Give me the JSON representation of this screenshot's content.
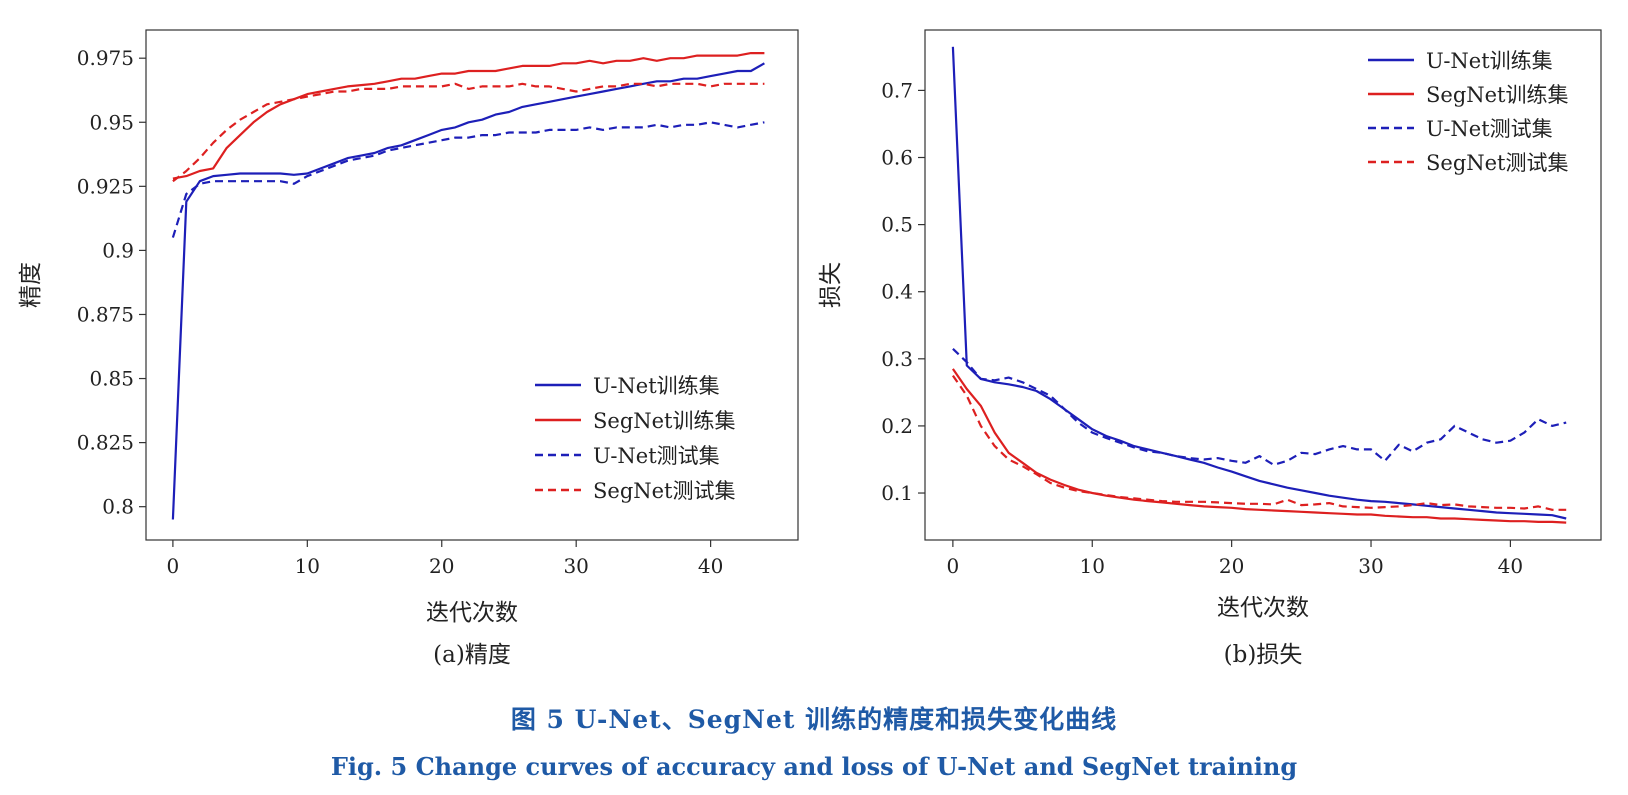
{
  "colors": {
    "unet": "#1d1fb8",
    "segnet": "#dd2020",
    "caption": "#1f5aa6"
  },
  "caption": {
    "cn": "图 5   U-Net、SegNet 训练的精度和损失变化曲线",
    "en": "Fig. 5   Change curves of accuracy and loss of U-Net and SegNet training"
  },
  "chart_data": [
    {
      "type": "line",
      "subcaption": "(a)精度",
      "xlabel": "迭代次数",
      "ylabel": "精度",
      "xlim": [
        -2,
        46.5
      ],
      "ylim": [
        0.787,
        0.986
      ],
      "xticks": [
        0,
        10,
        20,
        30,
        40
      ],
      "yticks": [
        0.8,
        0.825,
        0.85,
        0.875,
        0.9,
        0.925,
        0.95,
        0.975
      ],
      "ytick_labels": [
        "0.8",
        "0.825",
        "0.85",
        "0.875",
        "0.9",
        "0.925",
        "0.95",
        "0.975"
      ],
      "legend_position": "lower-right",
      "grid": false,
      "x": [
        0,
        1,
        2,
        3,
        4,
        5,
        6,
        7,
        8,
        9,
        10,
        11,
        12,
        13,
        14,
        15,
        16,
        17,
        18,
        19,
        20,
        21,
        22,
        23,
        24,
        25,
        26,
        27,
        28,
        29,
        30,
        31,
        32,
        33,
        34,
        35,
        36,
        37,
        38,
        39,
        40,
        41,
        42,
        43,
        44
      ],
      "series": [
        {
          "name": "U-Net训练集",
          "style": "solid",
          "color_key": "unet",
          "values": [
            0.795,
            0.919,
            0.927,
            0.929,
            0.9295,
            0.93,
            0.93,
            0.93,
            0.93,
            0.9295,
            0.93,
            0.932,
            0.934,
            0.936,
            0.937,
            0.938,
            0.94,
            0.941,
            0.943,
            0.945,
            0.947,
            0.948,
            0.95,
            0.951,
            0.953,
            0.954,
            0.956,
            0.957,
            0.958,
            0.959,
            0.96,
            0.961,
            0.962,
            0.963,
            0.964,
            0.965,
            0.966,
            0.966,
            0.967,
            0.967,
            0.968,
            0.969,
            0.97,
            0.97,
            0.973
          ]
        },
        {
          "name": "SegNet训练集",
          "style": "solid",
          "color_key": "segnet",
          "values": [
            0.928,
            0.929,
            0.931,
            0.932,
            0.94,
            0.945,
            0.95,
            0.954,
            0.957,
            0.959,
            0.961,
            0.962,
            0.963,
            0.964,
            0.9645,
            0.965,
            0.966,
            0.967,
            0.967,
            0.968,
            0.969,
            0.969,
            0.97,
            0.97,
            0.97,
            0.971,
            0.972,
            0.972,
            0.972,
            0.973,
            0.973,
            0.974,
            0.973,
            0.974,
            0.974,
            0.975,
            0.974,
            0.975,
            0.975,
            0.976,
            0.976,
            0.976,
            0.976,
            0.977,
            0.977
          ]
        },
        {
          "name": "U-Net测试集",
          "style": "dashed",
          "color_key": "unet",
          "values": [
            0.905,
            0.922,
            0.926,
            0.927,
            0.927,
            0.927,
            0.927,
            0.927,
            0.927,
            0.926,
            0.929,
            0.931,
            0.933,
            0.935,
            0.936,
            0.937,
            0.939,
            0.94,
            0.941,
            0.942,
            0.943,
            0.944,
            0.944,
            0.945,
            0.945,
            0.946,
            0.946,
            0.946,
            0.947,
            0.947,
            0.947,
            0.948,
            0.947,
            0.948,
            0.948,
            0.948,
            0.949,
            0.948,
            0.949,
            0.949,
            0.95,
            0.949,
            0.948,
            0.949,
            0.95
          ]
        },
        {
          "name": "SegNet测试集",
          "style": "dashed",
          "color_key": "segnet",
          "values": [
            0.927,
            0.931,
            0.936,
            0.942,
            0.947,
            0.951,
            0.954,
            0.957,
            0.958,
            0.959,
            0.96,
            0.961,
            0.962,
            0.962,
            0.963,
            0.963,
            0.963,
            0.964,
            0.964,
            0.964,
            0.964,
            0.965,
            0.963,
            0.964,
            0.964,
            0.964,
            0.965,
            0.964,
            0.964,
            0.963,
            0.962,
            0.963,
            0.964,
            0.964,
            0.965,
            0.965,
            0.964,
            0.965,
            0.965,
            0.965,
            0.964,
            0.965,
            0.965,
            0.965,
            0.965
          ]
        }
      ]
    },
    {
      "type": "line",
      "subcaption": "(b)损失",
      "xlabel": "迭代次数",
      "ylabel": "损失",
      "xlim": [
        -2,
        46.5
      ],
      "ylim": [
        0.03,
        0.79
      ],
      "xticks": [
        0,
        10,
        20,
        30,
        40
      ],
      "yticks": [
        0.1,
        0.2,
        0.3,
        0.4,
        0.5,
        0.6,
        0.7
      ],
      "ytick_labels": [
        "0.1",
        "0.2",
        "0.3",
        "0.4",
        "0.5",
        "0.6",
        "0.7"
      ],
      "legend_position": "top-right",
      "grid": false,
      "x": [
        0,
        1,
        2,
        3,
        4,
        5,
        6,
        7,
        8,
        9,
        10,
        11,
        12,
        13,
        14,
        15,
        16,
        17,
        18,
        19,
        20,
        21,
        22,
        23,
        24,
        25,
        26,
        27,
        28,
        29,
        30,
        31,
        32,
        33,
        34,
        35,
        36,
        37,
        38,
        39,
        40,
        41,
        42,
        43,
        44
      ],
      "series": [
        {
          "name": "U-Net训练集",
          "style": "solid",
          "color_key": "unet",
          "values": [
            0.765,
            0.29,
            0.27,
            0.265,
            0.262,
            0.258,
            0.252,
            0.24,
            0.225,
            0.21,
            0.195,
            0.185,
            0.178,
            0.17,
            0.165,
            0.16,
            0.155,
            0.15,
            0.145,
            0.138,
            0.132,
            0.125,
            0.118,
            0.113,
            0.108,
            0.104,
            0.1,
            0.096,
            0.093,
            0.09,
            0.088,
            0.087,
            0.085,
            0.083,
            0.081,
            0.079,
            0.077,
            0.075,
            0.073,
            0.071,
            0.07,
            0.069,
            0.068,
            0.067,
            0.062
          ]
        },
        {
          "name": "SegNet训练集",
          "style": "solid",
          "color_key": "segnet",
          "values": [
            0.285,
            0.255,
            0.23,
            0.19,
            0.16,
            0.145,
            0.13,
            0.12,
            0.112,
            0.105,
            0.1,
            0.096,
            0.093,
            0.09,
            0.088,
            0.086,
            0.084,
            0.082,
            0.08,
            0.079,
            0.078,
            0.076,
            0.075,
            0.074,
            0.073,
            0.072,
            0.071,
            0.07,
            0.069,
            0.068,
            0.068,
            0.066,
            0.065,
            0.064,
            0.064,
            0.062,
            0.062,
            0.061,
            0.06,
            0.059,
            0.058,
            0.058,
            0.057,
            0.057,
            0.056
          ]
        },
        {
          "name": "U-Net测试集",
          "style": "dashed",
          "color_key": "unet",
          "values": [
            0.315,
            0.295,
            0.27,
            0.268,
            0.272,
            0.265,
            0.255,
            0.245,
            0.225,
            0.205,
            0.19,
            0.182,
            0.175,
            0.168,
            0.162,
            0.16,
            0.155,
            0.152,
            0.15,
            0.152,
            0.148,
            0.145,
            0.155,
            0.142,
            0.148,
            0.16,
            0.158,
            0.165,
            0.17,
            0.165,
            0.165,
            0.148,
            0.172,
            0.162,
            0.175,
            0.18,
            0.2,
            0.19,
            0.18,
            0.175,
            0.178,
            0.19,
            0.21,
            0.2,
            0.205
          ]
        },
        {
          "name": "SegNet测试集",
          "style": "dashed",
          "color_key": "segnet",
          "values": [
            0.275,
            0.245,
            0.2,
            0.17,
            0.15,
            0.14,
            0.128,
            0.115,
            0.108,
            0.103,
            0.1,
            0.097,
            0.094,
            0.092,
            0.09,
            0.088,
            0.087,
            0.087,
            0.087,
            0.086,
            0.085,
            0.084,
            0.084,
            0.083,
            0.09,
            0.082,
            0.083,
            0.085,
            0.08,
            0.079,
            0.078,
            0.079,
            0.08,
            0.082,
            0.085,
            0.082,
            0.083,
            0.08,
            0.079,
            0.078,
            0.078,
            0.077,
            0.08,
            0.075,
            0.075
          ]
        }
      ]
    }
  ]
}
